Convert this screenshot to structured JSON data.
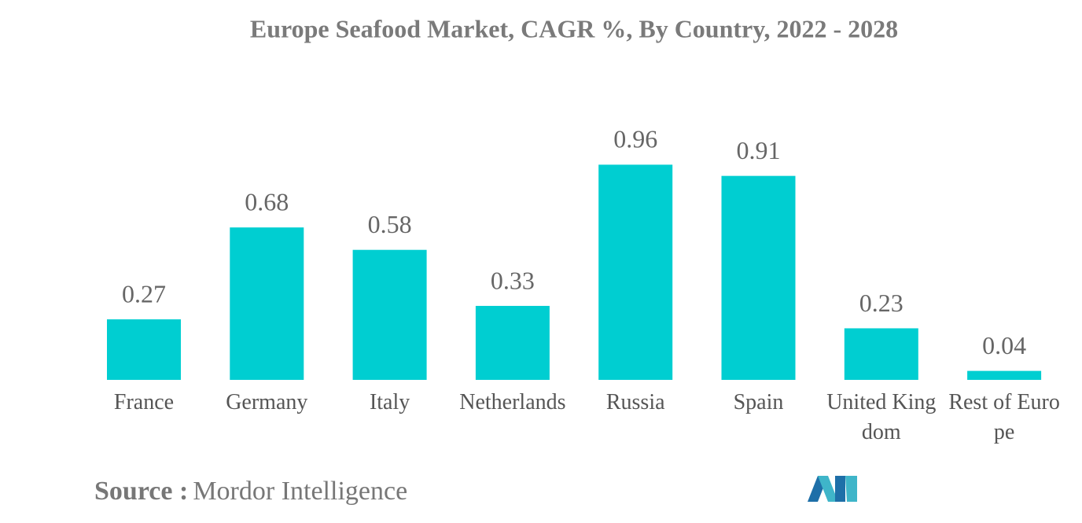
{
  "chart_data": {
    "type": "bar",
    "title": "Europe Seafood Market, CAGR %, By Country, 2022 - 2028",
    "categories": [
      "France",
      "Germany",
      "Italy",
      "Netherlands",
      "Russia",
      "Spain",
      "United Kingdom",
      "Rest of Europe"
    ],
    "values": [
      0.27,
      0.68,
      0.58,
      0.33,
      0.96,
      0.91,
      0.23,
      0.04
    ],
    "color": "#00ced1"
  },
  "source": {
    "label": "Source :",
    "text": "Mordor Intelligence"
  }
}
